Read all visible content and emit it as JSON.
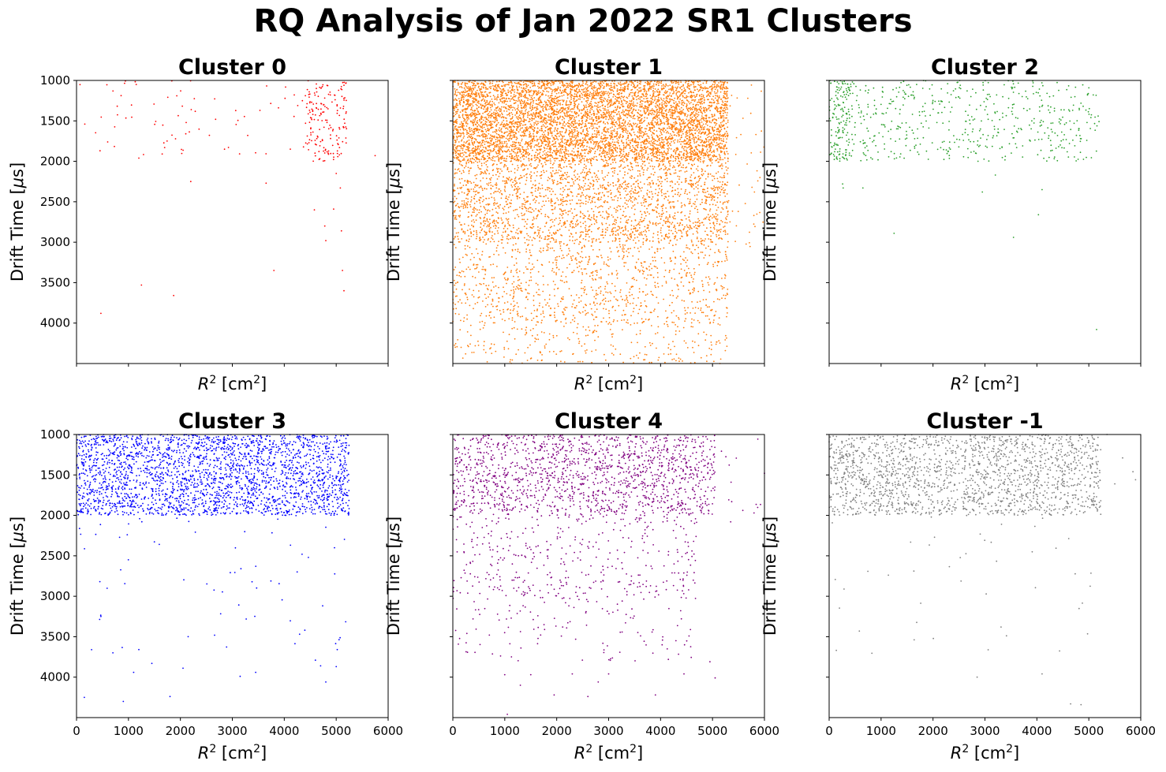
{
  "figure": {
    "suptitle": "RQ Analysis of Jan 2022 SR1 Clusters"
  },
  "chart_data": [
    {
      "type": "scatter",
      "title": "Cluster 0",
      "color": "#ff0000",
      "xlabel": "R² [cm²]",
      "ylabel": "Drift Time [μs]",
      "xlim": [
        0,
        6000
      ],
      "ylim": [
        4500,
        1000
      ],
      "xticks": [
        0,
        1000,
        2000,
        3000,
        4000,
        5000,
        6000
      ],
      "yticks": [
        1000,
        1500,
        2000,
        2500,
        3000,
        3500,
        4000
      ],
      "show_xticklabels": false,
      "show_yticklabels": true,
      "density": {
        "dense": [
          [
            4400,
            5200,
            1000,
            2000,
            170
          ],
          [
            2500,
            4400,
            1000,
            2000,
            25
          ]
        ],
        "sparse": [
          [
            0,
            2500,
            1000,
            2000,
            45
          ]
        ]
      },
      "points": [
        [
          160,
          1540
        ],
        [
          600,
          1760
        ],
        [
          1200,
          1960
        ],
        [
          1650,
          1910
        ],
        [
          2200,
          2250
        ],
        [
          3650,
          2270
        ],
        [
          4580,
          2600
        ],
        [
          4780,
          2800
        ],
        [
          4800,
          2980
        ],
        [
          4950,
          2590
        ],
        [
          5080,
          2330
        ],
        [
          5100,
          2860
        ],
        [
          5120,
          3350
        ],
        [
          5150,
          3600
        ],
        [
          3800,
          3350
        ],
        [
          1250,
          3530
        ],
        [
          1870,
          3660
        ],
        [
          470,
          3880
        ],
        [
          5750,
          1930
        ],
        [
          5000,
          2150
        ]
      ]
    },
    {
      "type": "scatter",
      "title": "Cluster 1",
      "color": "#ff7f0e",
      "xlabel": "R² [cm²]",
      "ylabel": "Drift Time [μs]",
      "xlim": [
        0,
        6000
      ],
      "ylim": [
        4500,
        1000
      ],
      "xticks": [
        0,
        1000,
        2000,
        3000,
        4000,
        5000,
        6000
      ],
      "yticks": [
        1000,
        1500,
        2000,
        2500,
        3000,
        3500,
        4000
      ],
      "show_xticklabels": false,
      "show_yticklabels": false,
      "density": {
        "dense": [
          [
            0,
            5300,
            1000,
            2000,
            6000
          ]
        ],
        "sparse": [
          [
            0,
            5300,
            2000,
            3000,
            2200
          ],
          [
            0,
            5300,
            3000,
            4000,
            1000
          ],
          [
            0,
            5300,
            4000,
            4500,
            250
          ],
          [
            5300,
            6000,
            1050,
            3200,
            40
          ]
        ]
      },
      "points": []
    },
    {
      "type": "scatter",
      "title": "Cluster 2",
      "color": "#2ca02c",
      "xlabel": "R² [cm²]",
      "ylabel": "Drift Time [μs]",
      "xlim": [
        0,
        6000
      ],
      "ylim": [
        4500,
        1000
      ],
      "xticks": [
        0,
        1000,
        2000,
        3000,
        4000,
        5000,
        6000
      ],
      "yticks": [
        1000,
        1500,
        2000,
        2500,
        3000,
        3500,
        4000
      ],
      "show_xticklabels": false,
      "show_yticklabels": false,
      "density": {
        "dense": [
          [
            0,
            5200,
            1000,
            2000,
            550
          ],
          [
            0,
            400,
            1000,
            2000,
            120
          ]
        ],
        "sparse": []
      },
      "points": [
        [
          260,
          2280
        ],
        [
          270,
          2330
        ],
        [
          650,
          2330
        ],
        [
          1250,
          2890
        ],
        [
          2950,
          2380
        ],
        [
          3200,
          2170
        ],
        [
          3550,
          2940
        ],
        [
          4030,
          2660
        ],
        [
          4100,
          2350
        ],
        [
          5150,
          4080
        ]
      ]
    },
    {
      "type": "scatter",
      "title": "Cluster 3",
      "color": "#0000ff",
      "xlabel": "R² [cm²]",
      "ylabel": "Drift Time [μs]",
      "xlim": [
        0,
        6000
      ],
      "ylim": [
        4500,
        1000
      ],
      "xticks": [
        0,
        1000,
        2000,
        3000,
        4000,
        5000,
        6000
      ],
      "yticks": [
        1000,
        1500,
        2000,
        2500,
        3000,
        3500,
        4000
      ],
      "show_xticklabels": true,
      "show_yticklabels": true,
      "density": {
        "dense": [
          [
            0,
            5250,
            1000,
            2000,
            2600
          ]
        ],
        "sparse": [
          [
            0,
            5250,
            2000,
            3000,
            45
          ],
          [
            0,
            5250,
            3000,
            3700,
            22
          ]
        ]
      },
      "points": [
        [
          150,
          4250
        ],
        [
          900,
          4300
        ],
        [
          1100,
          3940
        ],
        [
          1200,
          3660
        ],
        [
          1450,
          3830
        ],
        [
          1800,
          4240
        ],
        [
          2050,
          3890
        ],
        [
          3150,
          3990
        ],
        [
          3450,
          3940
        ],
        [
          4600,
          3790
        ],
        [
          4700,
          3860
        ],
        [
          4800,
          4060
        ],
        [
          5000,
          3870
        ],
        [
          700,
          3700
        ],
        [
          470,
          3250
        ]
      ]
    },
    {
      "type": "scatter",
      "title": "Cluster 4",
      "color": "#800080",
      "xlabel": "R² [cm²]",
      "ylabel": "Drift Time [μs]",
      "xlim": [
        0,
        6000
      ],
      "ylim": [
        4500,
        1000
      ],
      "xticks": [
        0,
        1000,
        2000,
        3000,
        4000,
        5000,
        6000
      ],
      "yticks": [
        1000,
        1500,
        2000,
        2500,
        3000,
        3500,
        4000
      ],
      "show_xticklabels": true,
      "show_yticklabels": false,
      "density": {
        "dense": [
          [
            0,
            5050,
            1000,
            2000,
            1500
          ]
        ],
        "sparse": [
          [
            0,
            4700,
            2000,
            3000,
            380
          ],
          [
            0,
            4700,
            3000,
            3800,
            130
          ],
          [
            5050,
            6000,
            1050,
            2000,
            12
          ]
        ]
      },
      "points": [
        [
          1050,
          4460
        ],
        [
          1000,
          3970
        ],
        [
          1500,
          3970
        ],
        [
          1300,
          4100
        ],
        [
          1950,
          4220
        ],
        [
          2300,
          3960
        ],
        [
          2600,
          4240
        ],
        [
          2800,
          4060
        ],
        [
          3000,
          3960
        ],
        [
          3900,
          4220
        ],
        [
          4450,
          3960
        ],
        [
          4950,
          3810
        ],
        [
          5050,
          4010
        ],
        [
          5350,
          2080
        ],
        [
          5800,
          1970
        ],
        [
          6000,
          1480
        ]
      ]
    },
    {
      "type": "scatter",
      "title": "Cluster -1",
      "color": "#808080",
      "xlabel": "R² [cm²]",
      "ylabel": "Drift Time [μs]",
      "xlim": [
        0,
        6000
      ],
      "ylim": [
        4500,
        1000
      ],
      "xticks": [
        0,
        1000,
        2000,
        3000,
        4000,
        5000,
        6000
      ],
      "yticks": [
        1000,
        1500,
        2000,
        2500,
        3000,
        3500,
        4000
      ],
      "show_xticklabels": true,
      "show_yticklabels": false,
      "density": {
        "dense": [
          [
            0,
            5250,
            1000,
            2000,
            1800
          ]
        ],
        "sparse": [
          [
            0,
            5250,
            2000,
            3000,
            30
          ],
          [
            0,
            5250,
            3000,
            3800,
            15
          ]
        ]
      },
      "points": [
        [
          2850,
          4000
        ],
        [
          4100,
          3960
        ],
        [
          4650,
          4330
        ],
        [
          4850,
          4340
        ],
        [
          5650,
          1290
        ],
        [
          5850,
          1460
        ],
        [
          5900,
          1560
        ],
        [
          5500,
          1610
        ],
        [
          5350,
          1000
        ]
      ]
    }
  ]
}
